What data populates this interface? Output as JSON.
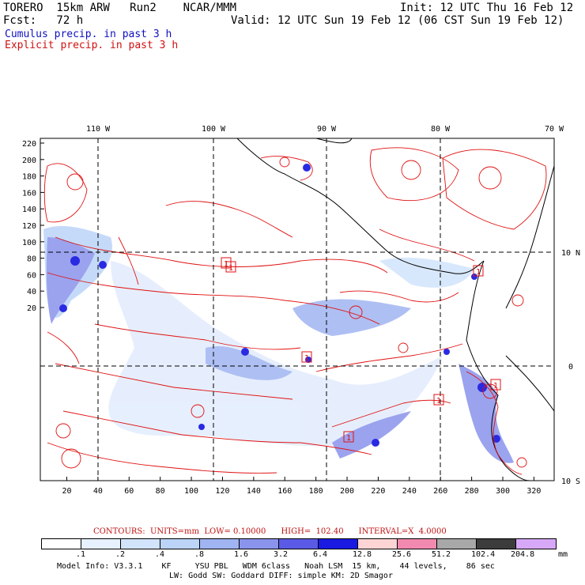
{
  "header": {
    "model": "TORERO  15km ARW   Run2    NCAR/MMM",
    "init": "Init: 12 UTC Thu 16 Feb 12",
    "fcst": "Fcst:   72 h",
    "valid": "Valid: 12 UTC Sun 19 Feb 12 (06 CST Sun 19 Feb 12)",
    "cumulus": "Cumulus precip. in past 3 h",
    "explicit": "Explicit precip. in past 3 h"
  },
  "map": {
    "lon_labels": [
      "110 W",
      "100 W",
      "90 W",
      "80 W",
      "70 W"
    ],
    "lat_labels": [
      "10 N",
      "0",
      "10 S"
    ],
    "x_ticks": [
      "20",
      "40",
      "60",
      "80",
      "100",
      "120",
      "140",
      "160",
      "180",
      "200",
      "220",
      "240",
      "260",
      "280",
      "300",
      "320"
    ],
    "y_ticks": [
      "220",
      "200",
      "180",
      "160",
      "140",
      "120",
      "100",
      "80",
      "60",
      "40",
      "20"
    ],
    "markers": [
      "1",
      "1",
      "1",
      "1",
      "1",
      "1",
      "1"
    ]
  },
  "contours": {
    "text": "CONTOURS:  UNITS=mm  LOW= 0.10000      HIGH=  102.40      INTERVAL=X  4.0000"
  },
  "legend": {
    "colors": [
      "#ffffff",
      "#e6f0ff",
      "#d2e4fc",
      "#bcd4f8",
      "#a0b4f2",
      "#8a94ec",
      "#5a5ae6",
      "#1a1ae2",
      "#ffd4d4",
      "#f28ab0",
      "#a8a8a8",
      "#3c3c3c",
      "#d8a8f8"
    ],
    "labels": [
      ".1",
      ".2",
      ".4",
      ".8",
      "1.6",
      "3.2",
      "6.4",
      "12.8",
      "25.6",
      "51.2",
      "102.4",
      "204.8"
    ],
    "unit": "mm"
  },
  "footer": {
    "line1": "Model Info: V3.3.1    KF     YSU PBL   WDM 6class   Noah LSM  15 km,    44 levels,    86 sec",
    "line2": "LW: Godd SW: Goddard DIFF: simple KM: 2D Smagor"
  }
}
